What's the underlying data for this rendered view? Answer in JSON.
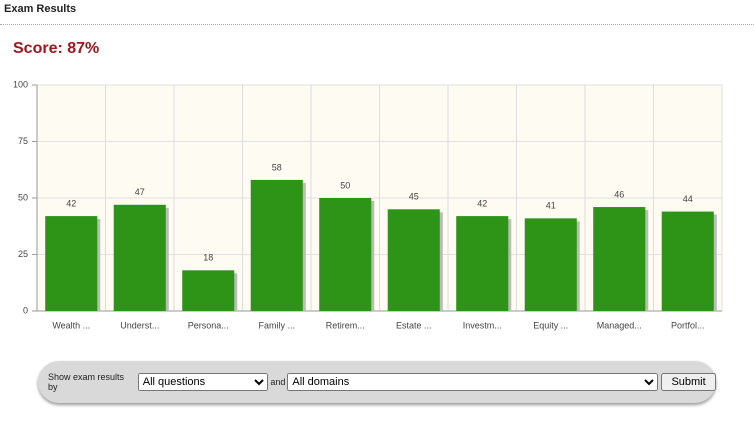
{
  "header": {
    "title": "Exam Results"
  },
  "score": "Score: 87%",
  "chart_data": {
    "type": "bar",
    "categories": [
      "Wealth ...",
      "Underst...",
      "Persona...",
      "Family ...",
      "Retirem...",
      "Estate ...",
      "Investm...",
      "Equity ...",
      "Managed...",
      "Portfol..."
    ],
    "values": [
      42,
      47,
      18,
      58,
      50,
      45,
      42,
      41,
      46,
      44
    ],
    "color": "#2e9418",
    "ylim": [
      0,
      100
    ],
    "yticks": [
      0,
      25,
      50,
      75,
      100
    ],
    "grid": true
  },
  "filter": {
    "label": "Show exam results by",
    "select1": "All questions",
    "conjunction": "and",
    "select2": "All domains",
    "button": "Submit"
  }
}
